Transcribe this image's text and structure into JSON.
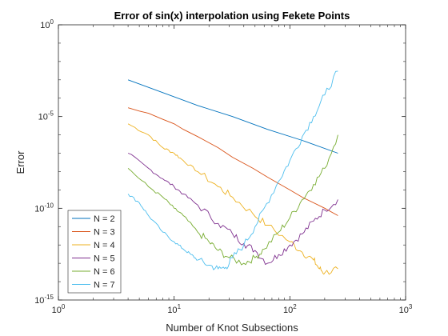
{
  "chart_data": {
    "type": "line",
    "title": "Error of sin(x) interpolation using Fekete Points",
    "xlabel": "Number of Knot Subsections",
    "ylabel": "Error",
    "xscale": "log",
    "yscale": "log",
    "xlim": [
      1,
      1000
    ],
    "ylim": [
      1e-15,
      1
    ],
    "x_ticks": [
      {
        "value": 1,
        "base": "10",
        "exp": "0"
      },
      {
        "value": 10,
        "base": "10",
        "exp": "1"
      },
      {
        "value": 100,
        "base": "10",
        "exp": "2"
      },
      {
        "value": 1000,
        "base": "10",
        "exp": "3"
      }
    ],
    "y_ticks": [
      {
        "value": 1,
        "base": "10",
        "exp": "0"
      },
      {
        "value": 1e-05,
        "base": "10",
        "exp": "-5"
      },
      {
        "value": 1e-10,
        "base": "10",
        "exp": "-10"
      },
      {
        "value": 1e-15,
        "base": "10",
        "exp": "-15"
      }
    ],
    "grid": false,
    "legend_position": "bottom-left",
    "series": [
      {
        "name": "N = 2",
        "color": "#0072BD",
        "x": [
          4,
          8,
          16,
          32,
          64,
          128,
          260
        ],
        "y": [
          0.001,
          0.0002,
          4e-05,
          1e-05,
          2e-06,
          5e-07,
          1e-07
        ]
      },
      {
        "name": "N = 3",
        "color": "#D95319",
        "x": [
          4,
          5,
          6,
          8,
          10,
          12,
          16,
          24,
          32,
          48,
          64,
          100,
          128,
          200,
          260
        ],
        "y": [
          3e-05,
          2e-05,
          1.5e-05,
          7e-06,
          4e-06,
          2e-06,
          8e-07,
          2e-07,
          6e-08,
          1.5e-08,
          5e-09,
          1e-09,
          4e-10,
          1e-10,
          4e-11
        ]
      },
      {
        "name": "N = 4",
        "color": "#EDB120",
        "x": [
          4,
          6,
          8,
          10,
          12,
          16,
          24,
          32,
          48,
          64,
          100,
          128,
          160,
          180,
          200,
          260
        ],
        "y": [
          4e-06,
          1e-06,
          2e-07,
          1e-07,
          4e-08,
          1e-08,
          1.5e-09,
          4e-10,
          5e-11,
          1.2e-11,
          1.5e-12,
          4e-13,
          1.5e-13,
          5e-14,
          3e-14,
          5e-14
        ]
      },
      {
        "name": "N = 5",
        "color": "#7E2F8E",
        "x": [
          4,
          6,
          8,
          10,
          12,
          16,
          24,
          32,
          40,
          50,
          64,
          80,
          100,
          128,
          160,
          200,
          260
        ],
        "y": [
          1e-07,
          1.5e-08,
          4e-09,
          1.5e-09,
          6e-10,
          1.5e-10,
          1.5e-11,
          4e-12,
          1.2e-12,
          5e-13,
          1e-13,
          3e-13,
          1e-12,
          4e-12,
          2e-11,
          8e-11,
          3e-10
        ]
      },
      {
        "name": "N = 6",
        "color": "#77AC30",
        "x": [
          4,
          6,
          8,
          10,
          12,
          16,
          20,
          24,
          30,
          40,
          50,
          60,
          80,
          100,
          128,
          160,
          200,
          260
        ],
        "y": [
          1.5e-08,
          1.5e-09,
          4e-10,
          1e-10,
          4e-11,
          5e-12,
          1.5e-12,
          5e-13,
          2e-13,
          1e-13,
          2e-13,
          6e-13,
          5e-12,
          3e-11,
          3e-10,
          2e-09,
          1.5e-08,
          1e-06
        ]
      },
      {
        "name": "N = 7",
        "color": "#4DBEEE",
        "x": [
          4,
          5,
          6,
          8,
          10,
          12,
          14,
          16,
          20,
          24,
          28,
          32,
          40,
          50,
          60,
          80,
          100,
          128,
          160,
          200,
          260
        ],
        "y": [
          6e-10,
          2e-10,
          4e-11,
          5e-12,
          1.5e-12,
          6e-13,
          3e-13,
          1.5e-13,
          8e-14,
          5e-14,
          6e-14,
          2e-13,
          1e-12,
          1e-11,
          1e-10,
          3e-09,
          4e-08,
          8e-07,
          1e-05,
          0.00015,
          0.003
        ]
      }
    ]
  }
}
